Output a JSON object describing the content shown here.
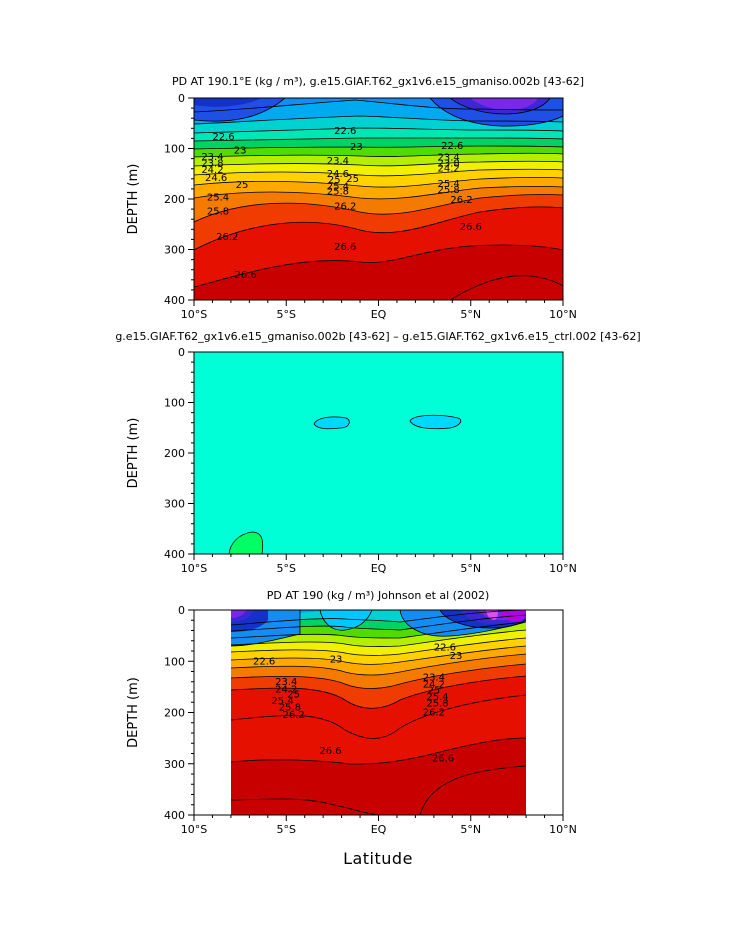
{
  "chart_data": [
    {
      "id": "p1",
      "type": "contour",
      "title": "PD AT 190.1°E (kg / m³), g.e15.GIAF.T62_gx1v6.e15_gmaniso.002b [43-62]",
      "ylabel": "DEPTH (m)",
      "xlabel": "",
      "xlim": [
        -10,
        10
      ],
      "ylim": [
        0,
        400
      ],
      "x_ticks": [
        -10,
        -5,
        0,
        5,
        10
      ],
      "x_tick_labels": [
        "10°S",
        "5°S",
        "EQ",
        "5°N",
        "10°N"
      ],
      "y_ticks": [
        0,
        100,
        200,
        300,
        400
      ],
      "y_tick_labels": [
        "0",
        "100",
        "200",
        "300",
        "400"
      ],
      "contour_labels": [
        {
          "text": "22.6",
          "x": -8.4,
          "y": 77
        },
        {
          "text": "22.6",
          "x": -1.8,
          "y": 65
        },
        {
          "text": "22.6",
          "x": 4.0,
          "y": 95
        },
        {
          "text": "23",
          "x": -7.5,
          "y": 104
        },
        {
          "text": "23",
          "x": -1.2,
          "y": 97
        },
        {
          "text": "23.4",
          "x": -9.0,
          "y": 117
        },
        {
          "text": "23.8",
          "x": -9.0,
          "y": 130
        },
        {
          "text": "24.2",
          "x": -9.0,
          "y": 143
        },
        {
          "text": "24.6",
          "x": -8.8,
          "y": 158
        },
        {
          "text": "25",
          "x": -7.4,
          "y": 172
        },
        {
          "text": "25.4",
          "x": -8.7,
          "y": 197
        },
        {
          "text": "25.8",
          "x": -8.7,
          "y": 225
        },
        {
          "text": "26.2",
          "x": -8.2,
          "y": 275
        },
        {
          "text": "26.6",
          "x": -7.2,
          "y": 350
        },
        {
          "text": "23.4",
          "x": -2.2,
          "y": 125
        },
        {
          "text": "24.6",
          "x": -2.2,
          "y": 150
        },
        {
          "text": "25",
          "x": -2.4,
          "y": 162
        },
        {
          "text": "25.4",
          "x": -2.2,
          "y": 175
        },
        {
          "text": "25.8",
          "x": -2.2,
          "y": 185
        },
        {
          "text": "26.2",
          "x": -1.8,
          "y": 215
        },
        {
          "text": "25",
          "x": -1.4,
          "y": 160
        },
        {
          "text": "26.6",
          "x": -1.8,
          "y": 295
        },
        {
          "text": "23.4",
          "x": 3.8,
          "y": 118
        },
        {
          "text": "23.8",
          "x": 3.8,
          "y": 130
        },
        {
          "text": "24.2",
          "x": 3.8,
          "y": 140
        },
        {
          "text": "25.4",
          "x": 3.8,
          "y": 170
        },
        {
          "text": "25.8",
          "x": 3.8,
          "y": 182
        },
        {
          "text": "26.2",
          "x": 4.5,
          "y": 202
        },
        {
          "text": "26.6",
          "x": 5.0,
          "y": 255
        }
      ]
    },
    {
      "id": "p2",
      "type": "contour",
      "title": "g.e15.GIAF.T62_gx1v6.e15_gmaniso.002b [43-62] – g.e15.GIAF.T62_gx1v6.e15_ctrl.002 [43-62]",
      "ylabel": "DEPTH (m)",
      "xlabel": "",
      "xlim": [
        -10,
        10
      ],
      "ylim": [
        0,
        400
      ],
      "x_ticks": [
        -10,
        -5,
        0,
        5,
        10
      ],
      "x_tick_labels": [
        "10°S",
        "5°S",
        "EQ",
        "5°N",
        "10°N"
      ],
      "y_ticks": [
        0,
        100,
        200,
        300,
        400
      ],
      "y_tick_labels": [
        "0",
        "100",
        "200",
        "300",
        "400"
      ]
    },
    {
      "id": "p3",
      "type": "contour",
      "title": "PD AT 190 (kg / m³) Johnson et al (2002)",
      "ylabel": "DEPTH (m)",
      "xlabel": "Latitude",
      "xlim": [
        -10,
        10
      ],
      "ylim": [
        0,
        400
      ],
      "x_ticks": [
        -10,
        -5,
        0,
        5,
        10
      ],
      "x_tick_labels": [
        "10°S",
        "5°S",
        "EQ",
        "5°N",
        "10°N"
      ],
      "y_ticks": [
        0,
        100,
        200,
        300,
        400
      ],
      "y_tick_labels": [
        "0",
        "100",
        "200",
        "300",
        "400"
      ],
      "data_xlim": [
        -8,
        8
      ],
      "contour_labels": [
        {
          "text": "22.6",
          "x": -6.2,
          "y": 100
        },
        {
          "text": "23",
          "x": -2.3,
          "y": 97
        },
        {
          "text": "22.6",
          "x": 3.6,
          "y": 73
        },
        {
          "text": "23",
          "x": 4.2,
          "y": 90
        },
        {
          "text": "23.4",
          "x": -5.0,
          "y": 140
        },
        {
          "text": "24.2",
          "x": -5.0,
          "y": 155
        },
        {
          "text": "25",
          "x": -4.6,
          "y": 165
        },
        {
          "text": "25.4",
          "x": -5.2,
          "y": 178
        },
        {
          "text": "25.8",
          "x": -4.8,
          "y": 190
        },
        {
          "text": "26.2",
          "x": -4.6,
          "y": 205
        },
        {
          "text": "23.4",
          "x": 3.0,
          "y": 132
        },
        {
          "text": "24.2",
          "x": 3.0,
          "y": 145
        },
        {
          "text": "25",
          "x": 3.0,
          "y": 157
        },
        {
          "text": "25.4",
          "x": 3.2,
          "y": 170
        },
        {
          "text": "25.8",
          "x": 3.2,
          "y": 182
        },
        {
          "text": "26.2",
          "x": 3.0,
          "y": 200
        },
        {
          "text": "26.6",
          "x": -2.6,
          "y": 275
        },
        {
          "text": "26.6",
          "x": 3.5,
          "y": 290
        }
      ]
    }
  ]
}
